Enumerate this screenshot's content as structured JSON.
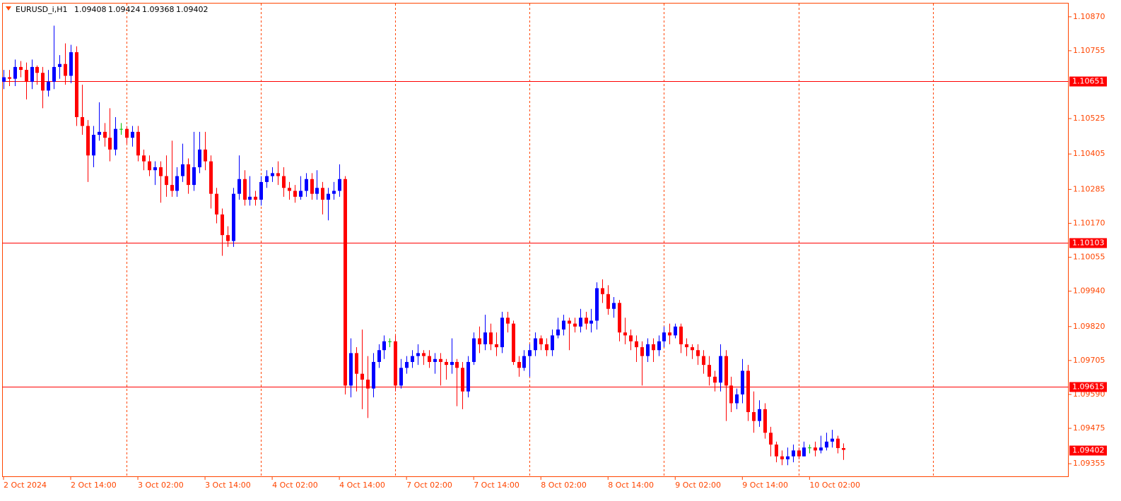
{
  "chart_data": {
    "type": "candlestick",
    "title": "EURUSD_i,H1",
    "colors": {
      "up": "#0000ff",
      "down": "#ff0000",
      "doji": "#00c000",
      "axis": "#ff4500",
      "level": "#ff0000"
    },
    "open": [
      1.1065,
      1.10665,
      1.1066,
      1.107,
      1.1069,
      1.1065,
      1.107,
      1.1068,
      1.1062,
      1.1065,
      1.107,
      1.1071,
      1.1067,
      1.1075,
      1.1053,
      1.105,
      1.104,
      1.1047,
      1.1048,
      1.1046,
      1.1042,
      1.1049,
      1.1049,
      1.1046,
      1.1048,
      1.104,
      1.1038,
      1.1035,
      1.1036,
      1.1033,
      1.103,
      1.1028,
      1.1033,
      1.1037,
      1.103,
      1.1036,
      1.1042,
      1.1038,
      1.1027,
      1.102,
      1.1013,
      1.1011,
      1.1027,
      1.1032,
      1.1025,
      1.1026,
      1.1025,
      1.1031,
      1.1033,
      1.1034,
      1.1033,
      1.1029,
      1.1028,
      1.1026,
      1.1028,
      1.1032,
      1.1027,
      1.1029,
      1.1025,
      1.1027,
      1.1028,
      1.1032,
      1.0962,
      1.0973,
      1.0966,
      1.0964,
      1.0961,
      1.097,
      1.0974,
      1.0977,
      1.0977,
      1.0962,
      1.0968,
      1.097,
      1.0972,
      1.0973,
      1.0972,
      1.097,
      1.0971,
      1.097,
      1.0969,
      1.097,
      1.0968,
      1.096,
      1.097,
      1.0978,
      1.0976,
      1.098,
      1.0976,
      1.0975,
      1.0985,
      1.0983,
      1.097,
      1.0968,
      1.0972,
      1.0974,
      1.0978,
      1.0976,
      1.0974,
      1.0979,
      1.0981,
      1.0984,
      1.0983,
      1.0982,
      1.0985,
      1.0983,
      1.0984,
      1.0995,
      1.0993,
      1.0988,
      1.099,
      1.098,
      1.0979,
      1.0977,
      1.0975,
      1.0972,
      1.0976,
      1.0974,
      1.0977,
      1.098,
      1.0979,
      1.0982,
      1.0976,
      1.0975,
      1.0974,
      1.0972,
      1.0969,
      1.0965,
      1.0963,
      1.0972,
      1.0962,
      1.0956,
      1.0959,
      1.0967,
      1.0953,
      1.095,
      1.0954,
      1.0946,
      1.0942,
      1.0938,
      1.0937,
      1.0938,
      1.094,
      1.0938,
      1.0941,
      1.0941,
      1.094,
      1.0941,
      1.0943,
      1.0944,
      1.09408
    ],
    "high": [
      1.1069,
      1.1069,
      1.10725,
      1.1072,
      1.10715,
      1.10725,
      1.10705,
      1.107,
      1.1069,
      1.1084,
      1.1074,
      1.1078,
      1.10775,
      1.1077,
      1.1064,
      1.1052,
      1.105,
      1.1058,
      1.1051,
      1.1056,
      1.1053,
      1.1051,
      1.105,
      1.105,
      1.105,
      1.1042,
      1.104,
      1.1038,
      1.1038,
      1.104,
      1.1045,
      1.1036,
      1.1044,
      1.1039,
      1.1048,
      1.1048,
      1.1048,
      1.104,
      1.1029,
      1.1022,
      1.1016,
      1.1029,
      1.104,
      1.1035,
      1.1033,
      1.1028,
      1.1033,
      1.1035,
      1.1036,
      1.1038,
      1.1036,
      1.1031,
      1.103,
      1.1033,
      1.1034,
      1.1034,
      1.1035,
      1.1031,
      1.1029,
      1.1031,
      1.1037,
      1.1033,
      1.0978,
      1.0975,
      1.0981,
      1.0972,
      1.0973,
      1.0976,
      1.0979,
      1.0978,
      1.0979,
      1.0971,
      1.0972,
      1.0974,
      1.0976,
      1.0974,
      1.0974,
      1.0973,
      1.0973,
      1.0971,
      1.0978,
      1.0971,
      1.097,
      1.0972,
      1.098,
      1.0982,
      1.0986,
      1.0983,
      1.098,
      1.0987,
      1.0987,
      1.0984,
      1.0972,
      1.0974,
      1.0976,
      1.098,
      1.0979,
      1.0978,
      1.0981,
      1.0985,
      1.0986,
      1.0985,
      1.0985,
      1.0988,
      1.0987,
      1.0988,
      1.0997,
      1.0998,
      1.0996,
      1.0992,
      1.0991,
      1.0985,
      1.0981,
      1.0979,
      1.0977,
      1.0978,
      1.0978,
      1.0979,
      1.0982,
      1.0983,
      1.0983,
      1.0983,
      1.0978,
      1.0976,
      1.0976,
      1.0974,
      1.0972,
      1.0967,
      1.0976,
      1.0974,
      1.0965,
      1.0961,
      1.0971,
      1.0969,
      1.096,
      1.0957,
      1.0956,
      1.0948,
      1.0943,
      1.094,
      1.0941,
      1.0942,
      1.0941,
      1.0943,
      1.0942,
      1.0943,
      1.0945,
      1.0946,
      1.0947,
      1.0945,
      1.09424
    ],
    "low": [
      1.10625,
      1.10635,
      1.10635,
      1.10665,
      1.1059,
      1.10625,
      1.1064,
      1.1056,
      1.106,
      1.10625,
      1.1066,
      1.1064,
      1.10645,
      1.105,
      1.1047,
      1.1031,
      1.1036,
      1.1045,
      1.1043,
      1.1038,
      1.104,
      1.1047,
      1.1044,
      1.1043,
      1.1038,
      1.1035,
      1.1033,
      1.103,
      1.1024,
      1.1026,
      1.1026,
      1.1026,
      1.1031,
      1.1027,
      1.1028,
      1.1034,
      1.1035,
      1.1022,
      1.1017,
      1.1006,
      1.1009,
      1.1009,
      1.1025,
      1.1023,
      1.1023,
      1.1023,
      1.1023,
      1.1029,
      1.1031,
      1.103,
      1.1026,
      1.1025,
      1.1024,
      1.1025,
      1.1026,
      1.1025,
      1.1025,
      1.102,
      1.1018,
      1.1025,
      1.1026,
      1.0959,
      1.0958,
      1.096,
      1.0954,
      1.0951,
      1.0958,
      1.0968,
      1.0971,
      1.0975,
      1.096,
      1.0961,
      1.0966,
      1.0968,
      1.0969,
      1.0969,
      1.0968,
      1.0966,
      1.0962,
      1.0964,
      1.0966,
      1.0955,
      1.0954,
      1.0958,
      1.0969,
      1.0973,
      1.0974,
      1.0974,
      1.0972,
      1.0973,
      1.098,
      1.0969,
      1.0965,
      1.0967,
      1.0965,
      1.0972,
      1.0974,
      1.0972,
      1.0972,
      1.0978,
      1.0979,
      1.0974,
      1.098,
      1.098,
      1.0981,
      1.098,
      1.0981,
      1.099,
      1.0986,
      1.0985,
      1.0977,
      1.0976,
      1.0974,
      1.097,
      1.0962,
      1.097,
      1.097,
      1.0972,
      1.0975,
      1.0976,
      1.0978,
      1.0973,
      1.0972,
      1.0971,
      1.0969,
      1.0966,
      1.0962,
      1.096,
      1.096,
      1.095,
      1.0953,
      1.0954,
      1.0956,
      1.095,
      1.0946,
      1.0948,
      1.0944,
      1.0938,
      1.0936,
      1.0935,
      1.0935,
      1.0936,
      1.0937,
      1.0938,
      1.0939,
      1.0938,
      1.0939,
      1.094,
      1.0941,
      1.0939,
      1.09368
    ],
    "close": [
      1.10665,
      1.1066,
      1.107,
      1.1069,
      1.1065,
      1.107,
      1.1068,
      1.1062,
      1.1065,
      1.107,
      1.1071,
      1.1067,
      1.1075,
      1.1053,
      1.105,
      1.104,
      1.1047,
      1.1048,
      1.1046,
      1.1042,
      1.1049,
      1.1049,
      1.1046,
      1.1048,
      1.104,
      1.1038,
      1.1035,
      1.1036,
      1.1033,
      1.103,
      1.1028,
      1.1033,
      1.1037,
      1.103,
      1.1036,
      1.1042,
      1.1038,
      1.1027,
      1.102,
      1.1013,
      1.1011,
      1.1027,
      1.1032,
      1.1025,
      1.1026,
      1.1025,
      1.1031,
      1.1033,
      1.1034,
      1.1033,
      1.1029,
      1.1028,
      1.1026,
      1.1028,
      1.1032,
      1.1027,
      1.1029,
      1.1025,
      1.1027,
      1.1028,
      1.1032,
      1.0962,
      1.0973,
      1.0966,
      1.0964,
      1.0961,
      1.097,
      1.0974,
      1.0977,
      1.0977,
      1.0962,
      1.0968,
      1.097,
      1.0972,
      1.0973,
      1.0972,
      1.097,
      1.0971,
      1.097,
      1.0969,
      1.097,
      1.0968,
      1.096,
      1.097,
      1.0978,
      1.0976,
      1.098,
      1.0976,
      1.0975,
      1.0985,
      1.0983,
      1.097,
      1.0968,
      1.0972,
      1.0974,
      1.0978,
      1.0976,
      1.0974,
      1.0979,
      1.0981,
      1.0984,
      1.0983,
      1.0982,
      1.0985,
      1.0983,
      1.0984,
      1.0995,
      1.0993,
      1.0988,
      1.099,
      1.098,
      1.0979,
      1.0977,
      1.0975,
      1.0972,
      1.0976,
      1.0974,
      1.0977,
      1.098,
      1.0979,
      1.0982,
      1.0976,
      1.0975,
      1.0974,
      1.0972,
      1.0969,
      1.0965,
      1.0963,
      1.0972,
      1.0962,
      1.0956,
      1.0959,
      1.0967,
      1.0953,
      1.095,
      1.0954,
      1.0946,
      1.0942,
      1.0938,
      1.0937,
      1.0938,
      1.094,
      1.0938,
      1.0941,
      1.0941,
      1.094,
      1.0941,
      1.0943,
      1.0944,
      1.09408,
      1.09402
    ],
    "xlim": [
      -0.25,
      190.3
    ],
    "xticks": [
      {
        "value": 0,
        "label": "2 Oct 2024"
      },
      {
        "value": 12,
        "label": "2 Oct 14:00"
      },
      {
        "value": 24,
        "label": "3 Oct 02:00"
      },
      {
        "value": 36,
        "label": "3 Oct 14:00"
      },
      {
        "value": 48,
        "label": "4 Oct 02:00"
      },
      {
        "value": 60,
        "label": "4 Oct 14:00"
      },
      {
        "value": 72,
        "label": "7 Oct 02:00"
      },
      {
        "value": 84,
        "label": "7 Oct 14:00"
      },
      {
        "value": 96,
        "label": "8 Oct 02:00"
      },
      {
        "value": 108,
        "label": "8 Oct 14:00"
      },
      {
        "value": 120,
        "label": "9 Oct 02:00"
      },
      {
        "value": 132,
        "label": "9 Oct 14:00"
      },
      {
        "value": 144,
        "label": "10 Oct 02:00"
      }
    ],
    "separators": [
      22,
      46,
      70,
      94,
      118,
      142,
      166
    ],
    "ylim": [
      1.0931,
      1.10915
    ],
    "yticks": [
      {
        "value": 1.1087,
        "label": "1.10870"
      },
      1.10755,
      1.10525,
      1.10405,
      1.10285,
      {
        "value": 1.1017,
        "label": "1.10170"
      },
      1.10055,
      {
        "value": 1.0994,
        "label": "1.09940"
      },
      {
        "value": 1.0982,
        "label": "1.09820"
      },
      1.09705,
      {
        "value": 1.0959,
        "label": "1.09590"
      },
      1.09475,
      1.09355
    ],
    "levels": [
      1.10651,
      1.10103,
      1.09615
    ]
  }
}
